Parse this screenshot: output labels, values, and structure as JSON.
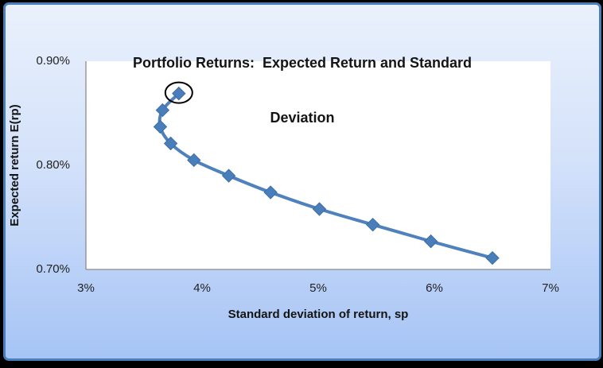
{
  "chart_data": {
    "type": "scatter",
    "title": "Portfolio Returns:  Expected Return and Standard Deviation",
    "title_lines": [
      "Portfolio Returns:  Expected Return and Standard",
      "Deviation"
    ],
    "xlabel": "Standard deviation of return, sp",
    "ylabel": "Expected return E(rp)",
    "xlim": [
      3,
      7
    ],
    "ylim": [
      0.7,
      0.9
    ],
    "grid": false,
    "legend_position": "none",
    "x_ticks": [
      {
        "value": 3,
        "label": "3%"
      },
      {
        "value": 4,
        "label": "4%"
      },
      {
        "value": 5,
        "label": "5%"
      },
      {
        "value": 6,
        "label": "6%"
      },
      {
        "value": 7,
        "label": "7%"
      }
    ],
    "y_ticks": [
      {
        "value": 0.9,
        "label": "0.90%"
      },
      {
        "value": 0.8,
        "label": "0.80%"
      },
      {
        "value": 0.7,
        "label": "0.70%"
      }
    ],
    "series": [
      {
        "marker": "diamond",
        "smooth": true,
        "points": [
          {
            "x": 3.8,
            "y": 0.869
          },
          {
            "x": 3.66,
            "y": 0.853
          },
          {
            "x": 3.64,
            "y": 0.837
          },
          {
            "x": 3.73,
            "y": 0.821
          },
          {
            "x": 3.93,
            "y": 0.805
          },
          {
            "x": 4.23,
            "y": 0.79
          },
          {
            "x": 4.59,
            "y": 0.774
          },
          {
            "x": 5.01,
            "y": 0.758
          },
          {
            "x": 5.47,
            "y": 0.743
          },
          {
            "x": 5.97,
            "y": 0.727
          },
          {
            "x": 6.5,
            "y": 0.711
          }
        ]
      }
    ],
    "annotation": {
      "shape": "ellipse",
      "point_index": 0,
      "description": "black ellipse circling the highest-return point"
    },
    "colors": {
      "series_line": "#4F81BD",
      "marker_fill": "#4A7EBB",
      "marker_edge": "#3D6EA5",
      "axis_line": "#8C8C8C",
      "plot_fill": "#FFFFFF",
      "chart_border": "#4A7EBB",
      "background_top": "#EAF1FC",
      "background_bottom": "#A6C4F5",
      "annotation_stroke": "#000000",
      "text": "#141414",
      "outer_background": "#000000"
    }
  }
}
